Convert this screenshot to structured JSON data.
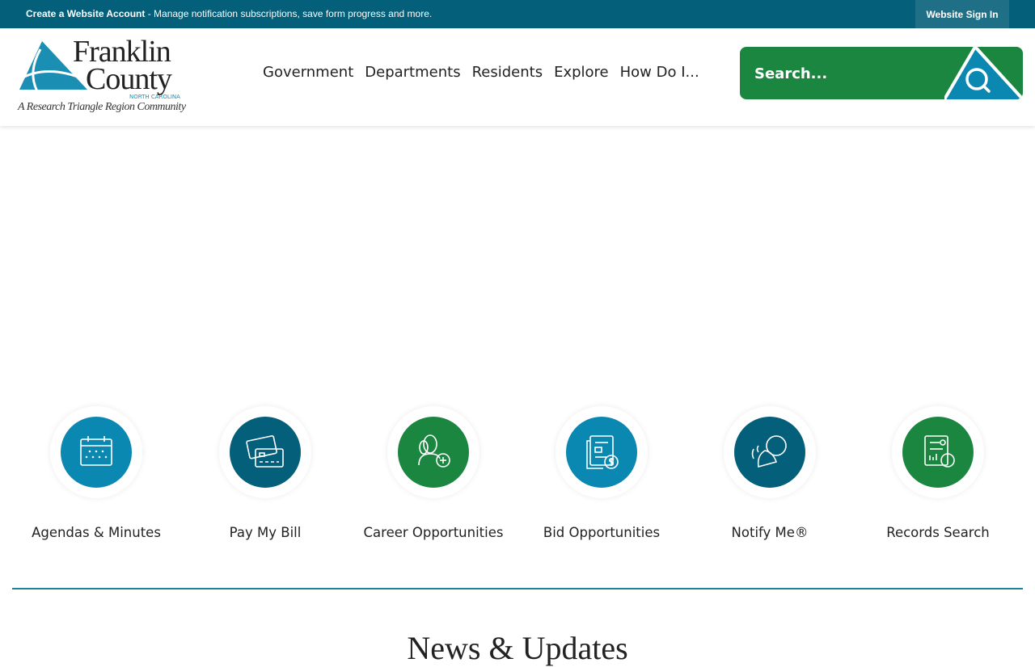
{
  "topbar": {
    "create_label": "Create a Website Account",
    "create_desc": " - Manage notification subscriptions, save form progress and more.",
    "signin_label": "Website Sign In"
  },
  "logo": {
    "line1": "Franklin",
    "line2": "County",
    "state": "NORTH CAROLINA",
    "tagline": "A Research Triangle Region Community"
  },
  "nav": [
    "Government",
    "Departments",
    "Residents",
    "Explore",
    "How Do I..."
  ],
  "search": {
    "placeholder": "Search...",
    "icon": "search-icon"
  },
  "quick_links": [
    {
      "label": "Agendas & Minutes",
      "icon": "calendar-icon",
      "color": "#0b88b2"
    },
    {
      "label": "Pay My Bill",
      "icon": "credit-card-icon",
      "color": "#035f7a"
    },
    {
      "label": "Career Opportunities",
      "icon": "people-add-icon",
      "color": "#1b8640"
    },
    {
      "label": "Bid Opportunities",
      "icon": "document-money-icon",
      "color": "#0b88b2"
    },
    {
      "label": "Notify Me®",
      "icon": "bell-chat-icon",
      "color": "#035f7a"
    },
    {
      "label": "Records Search",
      "icon": "records-search-icon",
      "color": "#1b8640"
    }
  ],
  "news_heading": "News & Updates",
  "colors": {
    "topbar": "#035f7a",
    "green": "#1b8640",
    "blue": "#0b88b2"
  }
}
